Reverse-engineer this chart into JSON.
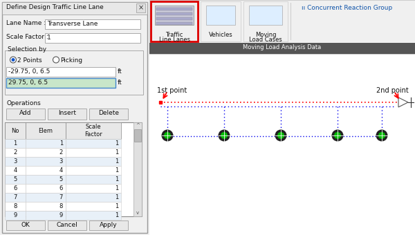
{
  "bg_color": "#f0f0f0",
  "dialog_title": "Define Design Traffic Line Lane",
  "lane_name_label": "Lane Name :",
  "lane_name_value": "Transverse Lane",
  "scale_factor_label": "Scale Factor :",
  "scale_factor_value": "1",
  "selection_by": "Selection by",
  "radio1": "2 Points",
  "radio2": "Picking",
  "coord1": "-29.75, 0, 6.5",
  "coord2": "29.75, 0, 6.5",
  "unit": "ft",
  "operations": "Operations",
  "btn_add": "Add",
  "btn_insert": "Insert",
  "btn_delete": "Delete",
  "table_rows": [
    [
      1,
      1,
      1
    ],
    [
      2,
      2,
      1
    ],
    [
      3,
      3,
      1
    ],
    [
      4,
      4,
      1
    ],
    [
      5,
      5,
      1
    ],
    [
      6,
      6,
      1
    ],
    [
      7,
      7,
      1
    ],
    [
      8,
      8,
      1
    ],
    [
      9,
      9,
      1
    ]
  ],
  "btn_ok": "OK",
  "btn_cancel": "Cancel",
  "btn_apply": "Apply",
  "ribbon_title1": "Traffic",
  "ribbon_title2": "Line Lanes",
  "ribbon_label2": "Vehicles",
  "ribbon_label3": "Moving",
  "ribbon_label3b": "Load Cases",
  "ribbon_label4": "Concurrent Reaction Group",
  "ribbon_footer": "Moving Load Analysis Data",
  "label_1st": "1st point",
  "label_2nd": "2nd point",
  "dot_color": "#0000ee",
  "red_color": "#ff0000",
  "node_green": "#00bb00",
  "node_dark": "#222222",
  "node_gray": "#444444"
}
